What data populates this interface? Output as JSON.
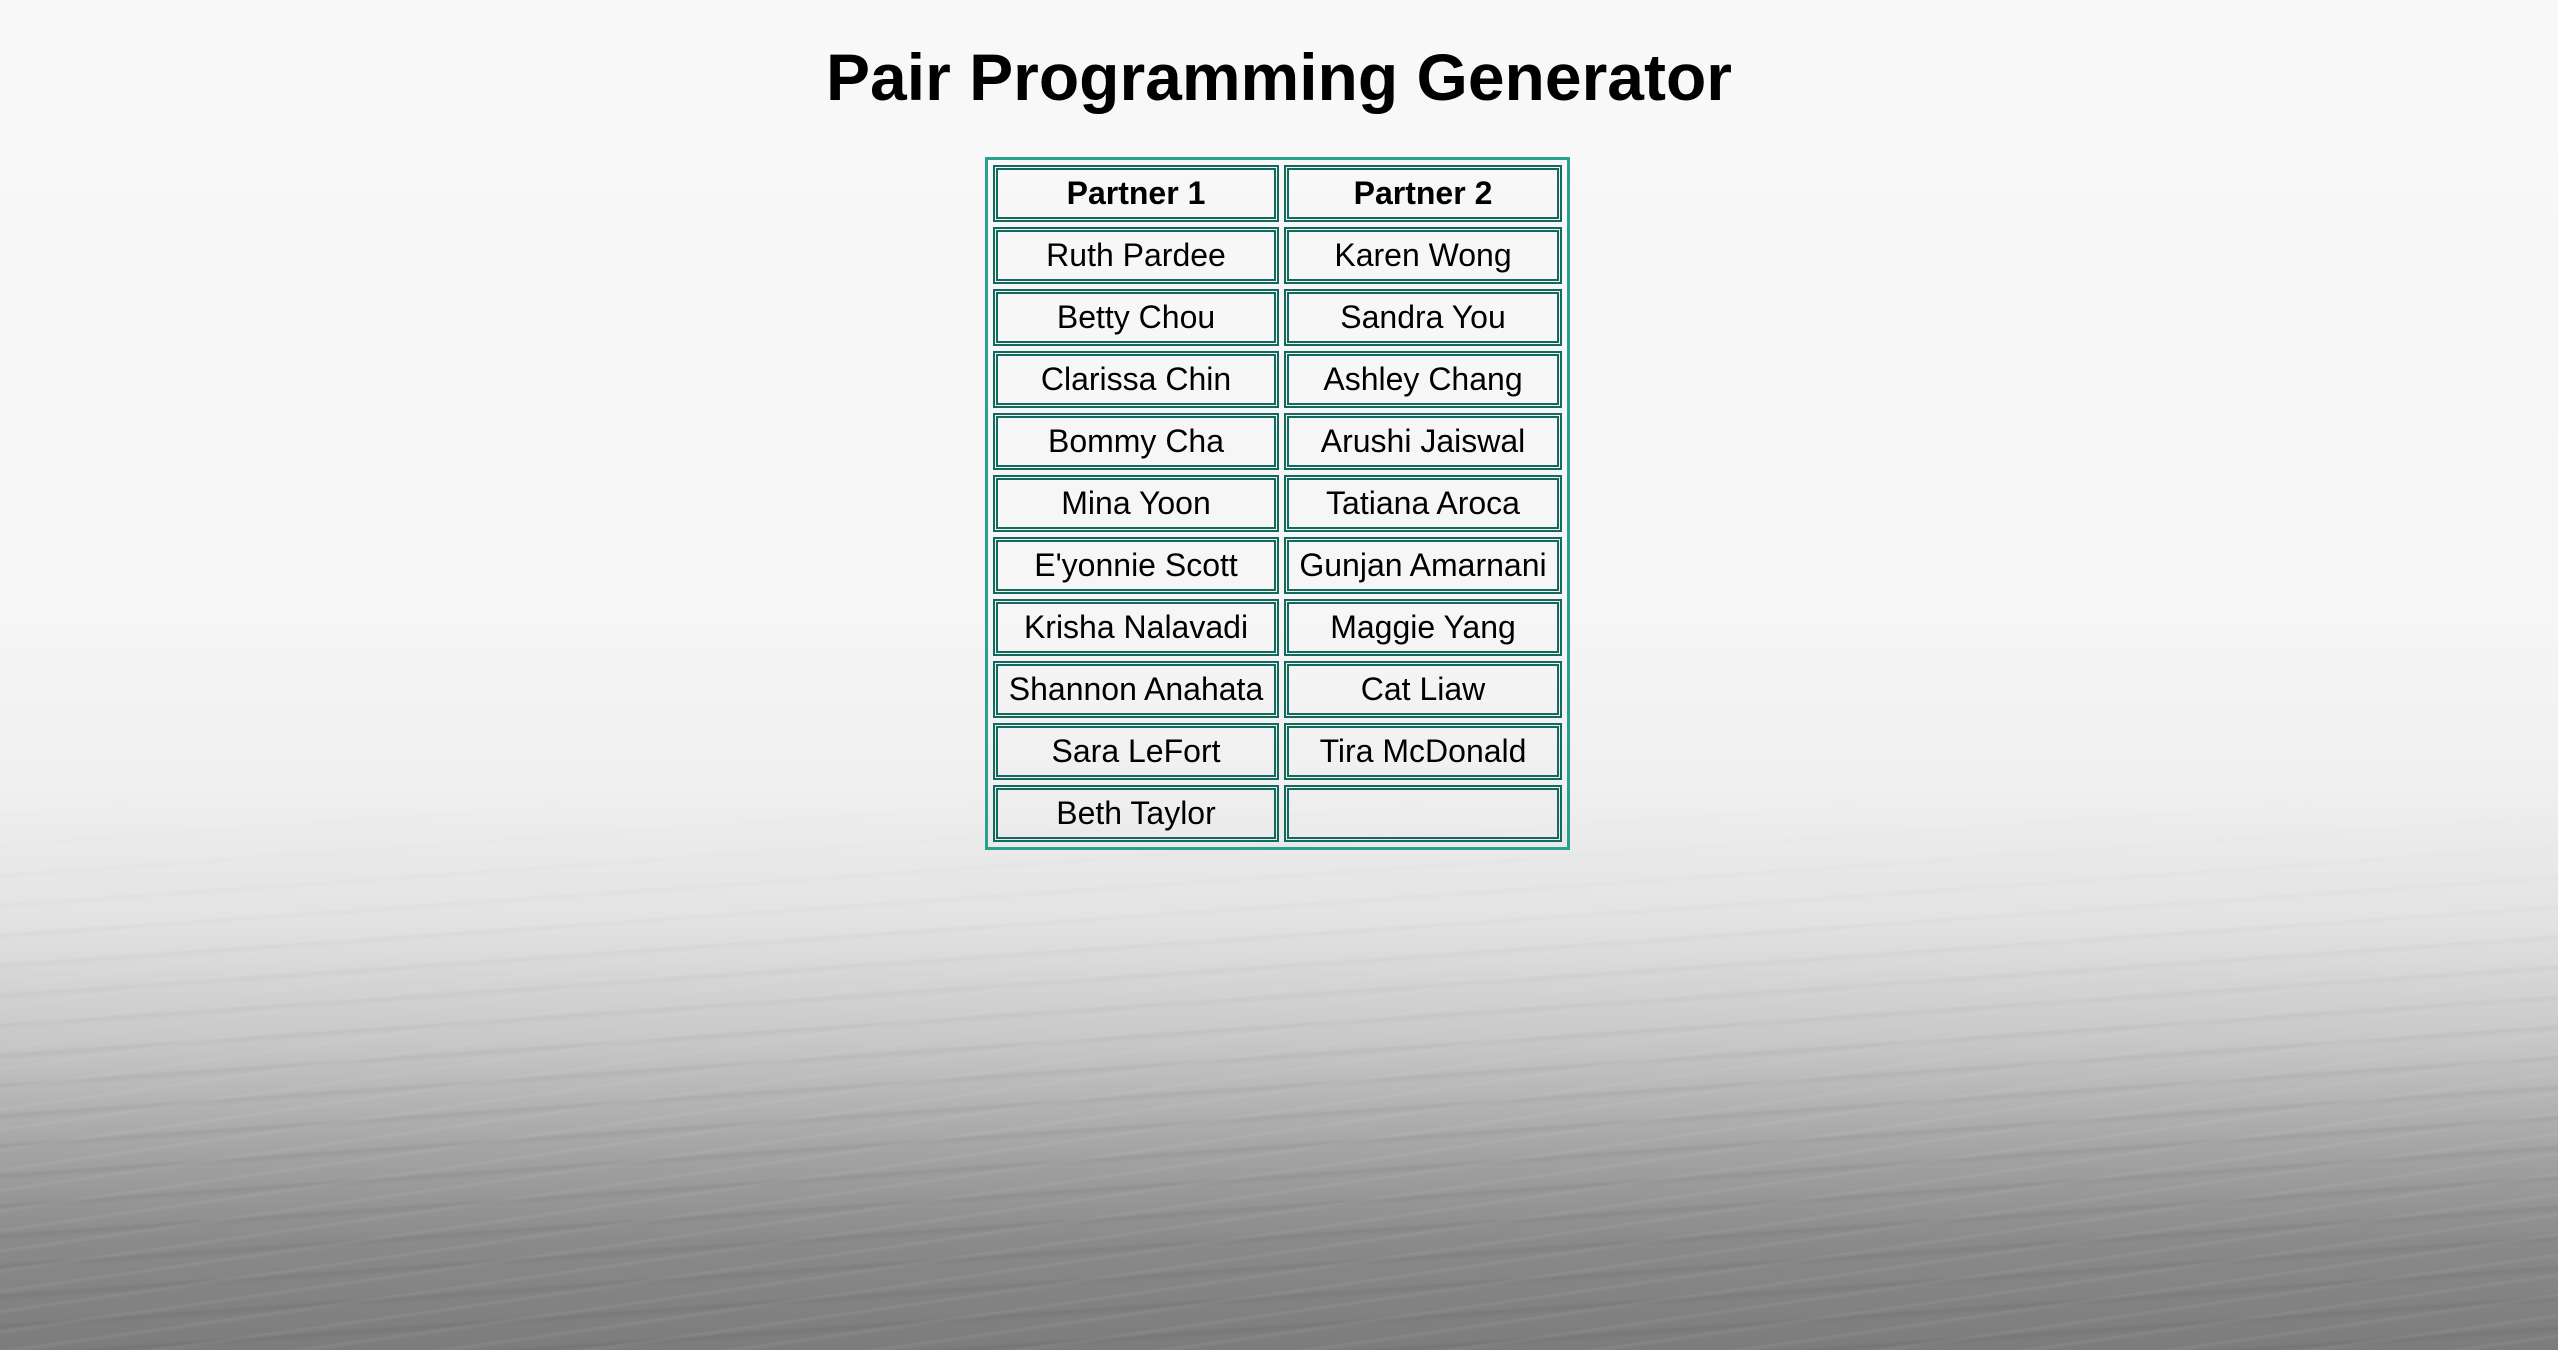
{
  "title": "Pair Programming Generator",
  "table": {
    "headers": [
      "Partner 1",
      "Partner 2"
    ],
    "rows": [
      [
        "Ruth Pardee",
        "Karen Wong"
      ],
      [
        "Betty Chou",
        "Sandra You"
      ],
      [
        "Clarissa Chin",
        "Ashley Chang"
      ],
      [
        "Bommy Cha",
        "Arushi Jaiswal"
      ],
      [
        "Mina Yoon",
        "Tatiana Aroca"
      ],
      [
        "E'yonnie Scott",
        "Gunjan Amarnani"
      ],
      [
        "Krisha Nalavadi",
        "Maggie Yang"
      ],
      [
        "Shannon Anahata",
        "Cat Liaw"
      ],
      [
        "Sara LeFort",
        "Tira McDonald"
      ],
      [
        "Beth Taylor",
        ""
      ]
    ]
  },
  "colors": {
    "table_outer_border": "#2aa08f",
    "cell_border": "#126a5c"
  }
}
